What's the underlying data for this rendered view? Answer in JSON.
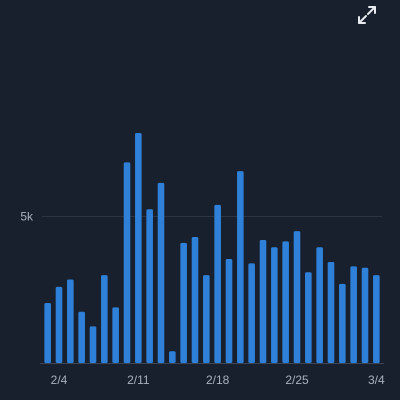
{
  "colors": {
    "background": "#18202d",
    "bar": "#2f80d8",
    "gridline": "#2c3544",
    "axis": "#3c4656",
    "tick_text": "#a7b0bd",
    "icon": "#e6e9ee"
  },
  "toolbar": {
    "expand_icon": "expand-fullscreen-icon"
  },
  "chart_data": {
    "type": "bar",
    "title": "",
    "xlabel": "",
    "ylabel": "",
    "categories": [
      "2/3",
      "2/4",
      "2/5",
      "2/6",
      "2/7",
      "2/8",
      "2/9",
      "2/10",
      "2/11",
      "2/12",
      "2/13",
      "2/14",
      "2/15",
      "2/16",
      "2/17",
      "2/18",
      "2/19",
      "2/20",
      "2/21",
      "2/22",
      "2/23",
      "2/24",
      "2/25",
      "2/26",
      "2/27",
      "2/28",
      "3/1",
      "3/2",
      "3/3",
      "3/4"
    ],
    "values": [
      2050,
      2600,
      2850,
      1750,
      1250,
      3000,
      1900,
      6850,
      7850,
      5250,
      6150,
      400,
      4100,
      4300,
      3000,
      5400,
      3550,
      6550,
      3400,
      4200,
      3950,
      4150,
      4500,
      3100,
      3950,
      3450,
      2700,
      3300,
      3250,
      3000
    ],
    "ylim": [
      0,
      9900
    ],
    "y_ticks": [
      {
        "value": 5000,
        "label": "5k"
      }
    ],
    "x_ticks": [
      {
        "category": "2/4",
        "label": "2/4"
      },
      {
        "category": "2/11",
        "label": "2/11"
      },
      {
        "category": "2/18",
        "label": "2/18"
      },
      {
        "category": "2/25",
        "label": "2/25"
      },
      {
        "category": "3/4",
        "label": "3/4"
      }
    ],
    "grid": true
  }
}
